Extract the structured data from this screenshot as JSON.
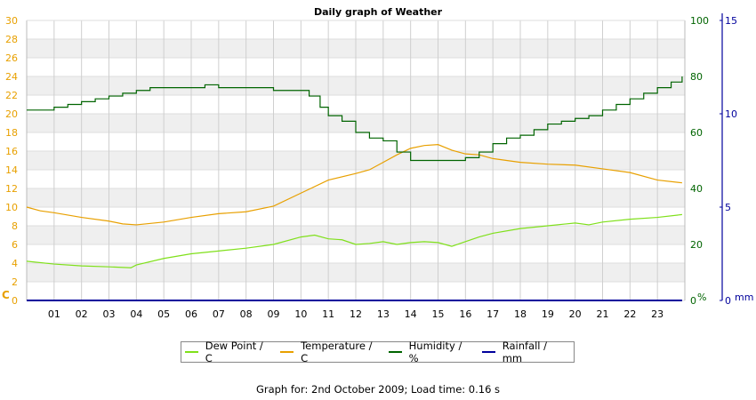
{
  "chart_data": {
    "type": "line",
    "title": "Daily graph of Weather",
    "x_tick_labels": [
      "01",
      "02",
      "03",
      "04",
      "05",
      "06",
      "07",
      "08",
      "09",
      "10",
      "11",
      "12",
      "13",
      "14",
      "15",
      "16",
      "17",
      "18",
      "19",
      "20",
      "21",
      "22",
      "23"
    ],
    "x_range": [
      0,
      24
    ],
    "left_axis": {
      "unit_label": "C",
      "range": [
        0,
        30
      ],
      "ticks": [
        0,
        2,
        4,
        6,
        8,
        10,
        12,
        14,
        16,
        18,
        20,
        22,
        24,
        26,
        28,
        30
      ],
      "color": "#e8a000"
    },
    "right_axis_1": {
      "unit_label": "%",
      "range": [
        0,
        100
      ],
      "ticks": [
        0,
        20,
        40,
        60,
        80,
        100
      ],
      "color": "#006400"
    },
    "right_axis_2": {
      "unit_label": "mm",
      "range": [
        0,
        15
      ],
      "ticks": [
        0,
        5,
        10,
        15
      ],
      "color": "#00009c"
    },
    "grid": true,
    "series": [
      {
        "name": "Dew Point / C",
        "axis": "left",
        "color": "#7fe01a",
        "x": [
          0,
          1,
          2,
          3,
          3.8,
          4,
          5,
          6,
          7,
          8,
          9,
          10,
          10.5,
          11,
          11.5,
          12,
          12.5,
          13,
          13.5,
          14,
          14.5,
          15,
          15.5,
          16,
          16.5,
          17,
          18,
          19,
          20,
          20.5,
          21,
          22,
          23,
          23.9
        ],
        "y": [
          4.2,
          3.9,
          3.7,
          3.6,
          3.5,
          3.8,
          4.5,
          5.0,
          5.3,
          5.6,
          6.0,
          6.8,
          7.0,
          6.6,
          6.5,
          6.0,
          6.1,
          6.3,
          6.0,
          6.2,
          6.3,
          6.2,
          5.8,
          6.3,
          6.8,
          7.2,
          7.7,
          8.0,
          8.3,
          8.1,
          8.4,
          8.7,
          8.9,
          9.2
        ]
      },
      {
        "name": "Temperature / C",
        "axis": "left",
        "color": "#e8a000",
        "x": [
          0,
          0.5,
          1,
          2,
          3,
          3.5,
          4,
          5,
          6,
          7,
          8,
          9,
          10,
          11,
          12,
          12.5,
          13,
          13.5,
          14,
          14.5,
          15,
          15.5,
          16,
          16.5,
          17,
          18,
          19,
          20,
          21,
          22,
          23,
          23.9
        ],
        "y": [
          10.0,
          9.6,
          9.4,
          8.9,
          8.5,
          8.2,
          8.1,
          8.4,
          8.9,
          9.3,
          9.5,
          10.1,
          11.5,
          12.9,
          13.6,
          14.0,
          14.8,
          15.6,
          16.3,
          16.6,
          16.7,
          16.1,
          15.7,
          15.6,
          15.2,
          14.8,
          14.6,
          14.5,
          14.1,
          13.7,
          12.9,
          12.6
        ]
      },
      {
        "name": "Humidity / %",
        "axis": "right_1",
        "color": "#006400",
        "x": [
          0,
          0.5,
          1,
          1.5,
          2,
          2.5,
          3,
          3.5,
          4,
          4.5,
          5,
          5.5,
          6,
          6.5,
          7,
          7.5,
          8,
          8.5,
          9,
          9.5,
          10,
          10.3,
          10.7,
          11,
          11.5,
          12,
          12.5,
          13,
          13.5,
          14,
          14.5,
          15,
          15.5,
          16,
          16.5,
          17,
          17.5,
          18,
          18.5,
          19,
          19.5,
          20,
          20.5,
          21,
          21.5,
          22,
          22.5,
          23,
          23.5,
          23.9
        ],
        "y": [
          68,
          68,
          69,
          70,
          71,
          72,
          73,
          74,
          75,
          76,
          76,
          76,
          76,
          77,
          76,
          76,
          76,
          76,
          75,
          75,
          75,
          73,
          69,
          66,
          64,
          60,
          58,
          57,
          53,
          50,
          50,
          50,
          50,
          51,
          53,
          56,
          58,
          59,
          61,
          63,
          64,
          65,
          66,
          68,
          70,
          72,
          74,
          76,
          78,
          80
        ]
      },
      {
        "name": "Rainfall / mm",
        "axis": "right_2",
        "color": "#00009c",
        "x": [
          0,
          23.9
        ],
        "y": [
          0,
          0
        ]
      }
    ]
  },
  "footer": {
    "text": "Graph for: 2nd October 2009; Load time: 0.16 s"
  }
}
